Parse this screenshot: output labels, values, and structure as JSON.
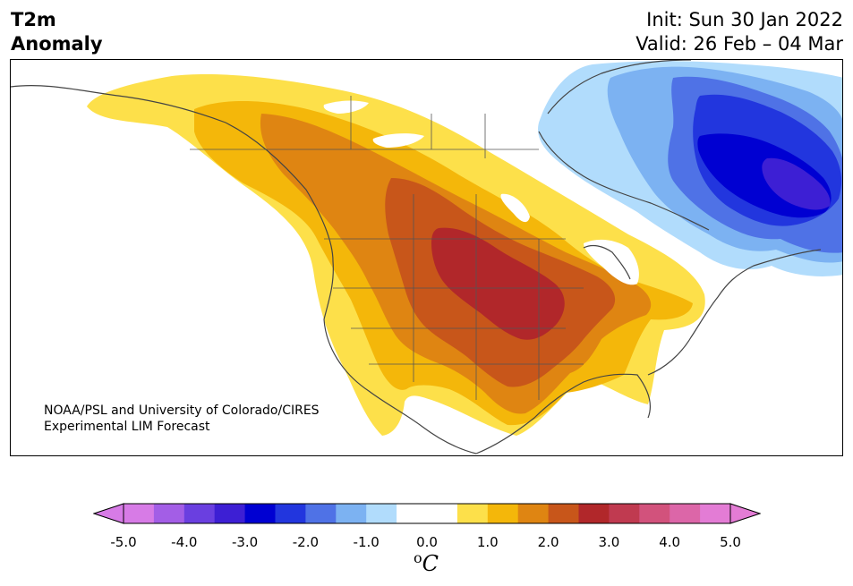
{
  "title": {
    "variable": "T2m",
    "subtitle": "Anomaly",
    "init": "Init: Sun 30 Jan 2022",
    "valid": "Valid: 26 Feb – 04 Mar"
  },
  "credit": {
    "line1": "NOAA/PSL and University of Colorado/CIRES",
    "line2": "Experimental LIM Forecast"
  },
  "colorbar": {
    "unit_sup": "o",
    "unit": "C",
    "ticks": [
      "-5.0",
      "-4.0",
      "-3.0",
      "-2.0",
      "-1.0",
      "0.0",
      "1.0",
      "2.0",
      "3.0",
      "4.0",
      "5.0"
    ],
    "colors": {
      "under": "#d77be6",
      "bins": [
        "#d77be6",
        "#a35ee6",
        "#6a3fe0",
        "#3d1fd4",
        "#0000d2",
        "#2236de",
        "#4f72e6",
        "#7cb2f2",
        "#b1dcfc",
        "#ffffff",
        "#ffffff",
        "#fde04a",
        "#f4b70a",
        "#df8512",
        "#c8561a",
        "#b1272a",
        "#c03a50",
        "#d2527c",
        "#dc66a8",
        "#e37cd5"
      ],
      "over": "#e37cd5"
    }
  }
}
